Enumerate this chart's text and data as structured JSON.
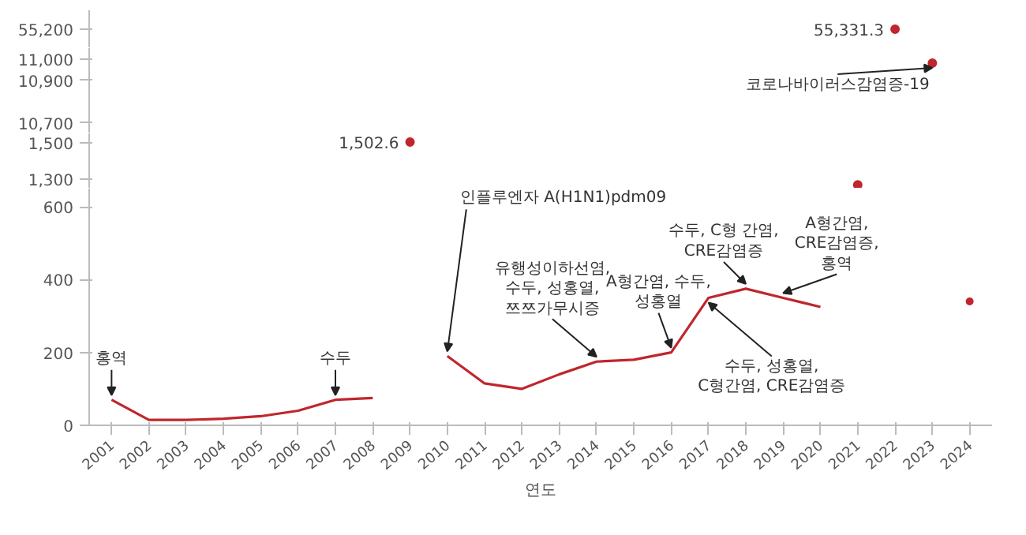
{
  "chart_data": [
    {
      "type": "other",
      "categories": [
        "2001",
        "2002",
        "2003",
        "2004",
        "2005",
        "2006",
        "2007",
        "2008",
        "2009",
        "2010",
        "2011",
        "2012",
        "2013",
        "2014",
        "2015",
        "2016",
        "2017",
        "2018",
        "2019",
        "2020",
        "2021",
        "2022",
        "2023",
        "2024"
      ],
      "color": "#c0262d",
      "values": [
        null,
        null,
        null,
        null,
        null,
        null,
        null,
        null,
        null,
        null,
        null,
        null,
        null,
        null,
        null,
        null,
        null,
        null,
        null,
        null,
        null,
        55331.3,
        null,
        null
      ],
      "value_labels": [
        null,
        null,
        null,
        null,
        null,
        null,
        null,
        null,
        null,
        null,
        null,
        null,
        null,
        null,
        null,
        null,
        null,
        null,
        null,
        null,
        null,
        "55,331.3",
        null,
        null
      ],
      "annotations": [
        "55,200"
      ]
    },
    {
      "type": "scatter",
      "categories": [
        "2001",
        "2002",
        "2003",
        "2004",
        "2005",
        "2006",
        "2007",
        "2008",
        "2009",
        "2010",
        "2011",
        "2012",
        "2013",
        "2014",
        "2015",
        "2016",
        "2017",
        "2018",
        "2019",
        "2020",
        "2021",
        "2022",
        "2023",
        "2024"
      ],
      "ylim": [
        10650,
        11050
      ],
      "yticks": [
        {
          "value": 10700,
          "label": "10,700"
        },
        {
          "value": 10900,
          "label": "10,900"
        },
        {
          "value": 11000,
          "label": "11,000"
        }
      ],
      "tick_labels": "y",
      "color": "#c0262d",
      "marker": "circle",
      "values": [
        null,
        null,
        null,
        null,
        null,
        null,
        null,
        null,
        null,
        null,
        null,
        null,
        null,
        null,
        null,
        null,
        null,
        null,
        null,
        null,
        null,
        null,
        10980,
        null
      ],
      "annotations": [
        {
          "text": "코로나바이러스감염증-19",
          "x": "2023",
          "y": 10980
        }
      ]
    },
    {
      "type": "scatter",
      "categories": [
        "2001",
        "2002",
        "2003",
        "2004",
        "2005",
        "2006",
        "2007",
        "2008",
        "2009",
        "2010",
        "2011",
        "2012",
        "2013",
        "2014",
        "2015",
        "2016",
        "2017",
        "2018",
        "2019",
        "2020",
        "2021",
        "2022",
        "2023",
        "2024"
      ],
      "ylim": [
        1250,
        1550
      ],
      "yticks": [
        {
          "value": 1300,
          "label": "1,300"
        },
        {
          "value": 1500,
          "label": "1,500"
        }
      ],
      "tick_labels": "y",
      "color": "#c0262d",
      "marker": "circle",
      "values": [
        null,
        null,
        null,
        null,
        null,
        null,
        null,
        null,
        1502.6,
        null,
        null,
        null,
        null,
        null,
        null,
        null,
        null,
        null,
        null,
        null,
        1270,
        null,
        null,
        null
      ],
      "value_labels": [
        null,
        null,
        null,
        null,
        null,
        null,
        null,
        null,
        "1,502.6",
        null,
        null,
        null,
        null,
        null,
        null,
        null,
        null,
        null,
        null,
        null,
        null,
        null,
        null,
        null
      ]
    },
    {
      "type": "line",
      "categories": [
        "2001",
        "2002",
        "2003",
        "2004",
        "2005",
        "2006",
        "2007",
        "2008",
        "2009",
        "2010",
        "2011",
        "2012",
        "2013",
        "2014",
        "2015",
        "2016",
        "2017",
        "2018",
        "2019",
        "2020",
        "2021",
        "2022",
        "2023",
        "2024"
      ],
      "ylim": [
        0,
        650
      ],
      "yticks": [
        0,
        200,
        400,
        600
      ],
      "xlabel": "연도",
      "color": "#c0262d",
      "values": [
        70,
        15,
        15,
        18,
        25,
        40,
        70,
        75,
        null,
        190,
        115,
        100,
        140,
        175,
        180,
        200,
        350,
        375,
        350,
        325,
        null,
        null,
        null,
        340
      ],
      "annotations": [
        {
          "text": "홍역",
          "x": "2001",
          "y": 70
        },
        {
          "text": "수두",
          "x": "2007",
          "y": 70
        },
        {
          "text": "인플루엔자 A(H1N1)pdm09",
          "x": "2010",
          "y": 190
        },
        {
          "text": "유행성이하선염,\n수두, 성홍열,\n쯔쯔가무시증",
          "x": "2014",
          "y": 175
        },
        {
          "text": "A형간염, 수두,\n성홍열",
          "x": "2016",
          "y": 200
        },
        {
          "text": "수두, 성홍열,\nC형간염, CRE감염증",
          "x": "2017",
          "y": 350
        },
        {
          "text": "수두, C형 간염,\nCRE감염증",
          "x": "2018",
          "y": 375
        },
        {
          "text": "A형간염,\nCRE감염증,\n홍역",
          "x": "2019",
          "y": 350
        }
      ]
    }
  ]
}
